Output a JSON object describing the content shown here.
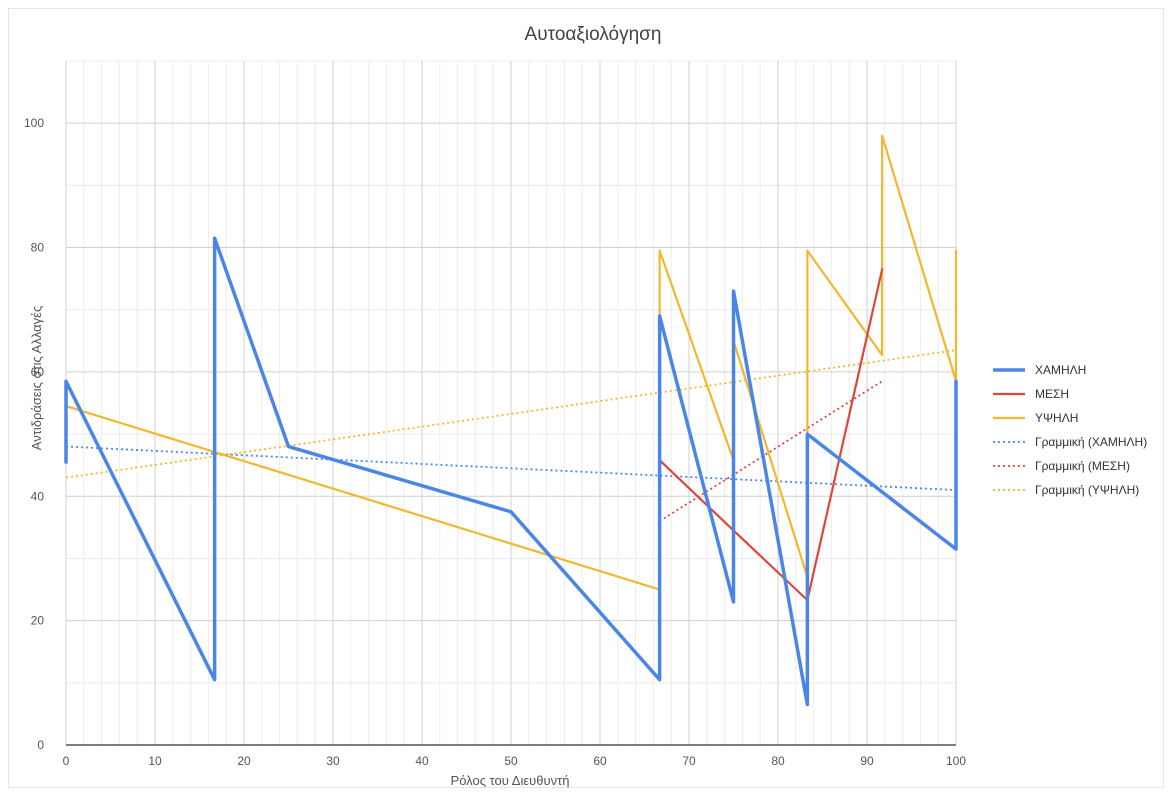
{
  "chart_data": {
    "type": "line",
    "title": "Αυτοαξιολόγηση",
    "xlabel": "Ρόλος του Διευθυντή",
    "ylabel": "Αντιδράσεις στις Αλλαγές",
    "xlim": [
      0,
      100
    ],
    "ylim": [
      0,
      110
    ],
    "xticks": [
      0,
      10,
      20,
      30,
      40,
      50,
      60,
      70,
      80,
      90,
      100
    ],
    "yticks": [
      0,
      20,
      40,
      60,
      80,
      100
    ],
    "grid": true,
    "legend_position": "right",
    "series": [
      {
        "name": "ΧΑΜΗΛΗ",
        "color": "#4a86e8",
        "style": "solid",
        "points": [
          [
            0,
            45.5
          ],
          [
            0,
            58.5
          ],
          [
            16.7,
            10.5
          ],
          [
            16.7,
            81.5
          ],
          [
            25,
            48
          ],
          [
            50,
            37.5
          ],
          [
            66.7,
            10.5
          ],
          [
            66.7,
            69
          ],
          [
            75,
            23
          ],
          [
            75,
            73
          ],
          [
            83.3,
            6.5
          ],
          [
            83.3,
            50
          ],
          [
            100,
            31.5
          ],
          [
            100,
            58.5
          ]
        ]
      },
      {
        "name": "ΜΕΣΗ",
        "color": "#e0453a",
        "style": "solid",
        "points": [
          [
            66.7,
            45.8
          ],
          [
            75,
            34.5
          ],
          [
            83.3,
            23.3
          ],
          [
            91.7,
            76.5
          ]
        ]
      },
      {
        "name": "ΥΨΗΛΗ",
        "color": "#f1b82d",
        "style": "solid",
        "points": [
          [
            0,
            54.5
          ],
          [
            66.7,
            25
          ],
          [
            66.7,
            79.5
          ],
          [
            75,
            45.8
          ],
          [
            75,
            65
          ],
          [
            83.3,
            27
          ],
          [
            83.3,
            79.5
          ],
          [
            91.7,
            62.7
          ],
          [
            91.7,
            98
          ],
          [
            100,
            58.5
          ],
          [
            100,
            79.5
          ]
        ]
      },
      {
        "name": "Γραμμική (ΧΑΜΗΛΗ)",
        "color": "#4a86e8",
        "style": "dotted",
        "points": [
          [
            0,
            48
          ],
          [
            100,
            41
          ]
        ]
      },
      {
        "name": "Γραμμική (ΜΕΣΗ)",
        "color": "#e0453a",
        "style": "dotted",
        "points": [
          [
            66.7,
            36
          ],
          [
            91.7,
            58.5
          ]
        ]
      },
      {
        "name": "Γραμμική (ΥΨΗΛΗ)",
        "color": "#f1b82d",
        "style": "dotted",
        "points": [
          [
            0,
            43
          ],
          [
            100,
            63.5
          ]
        ]
      }
    ]
  }
}
